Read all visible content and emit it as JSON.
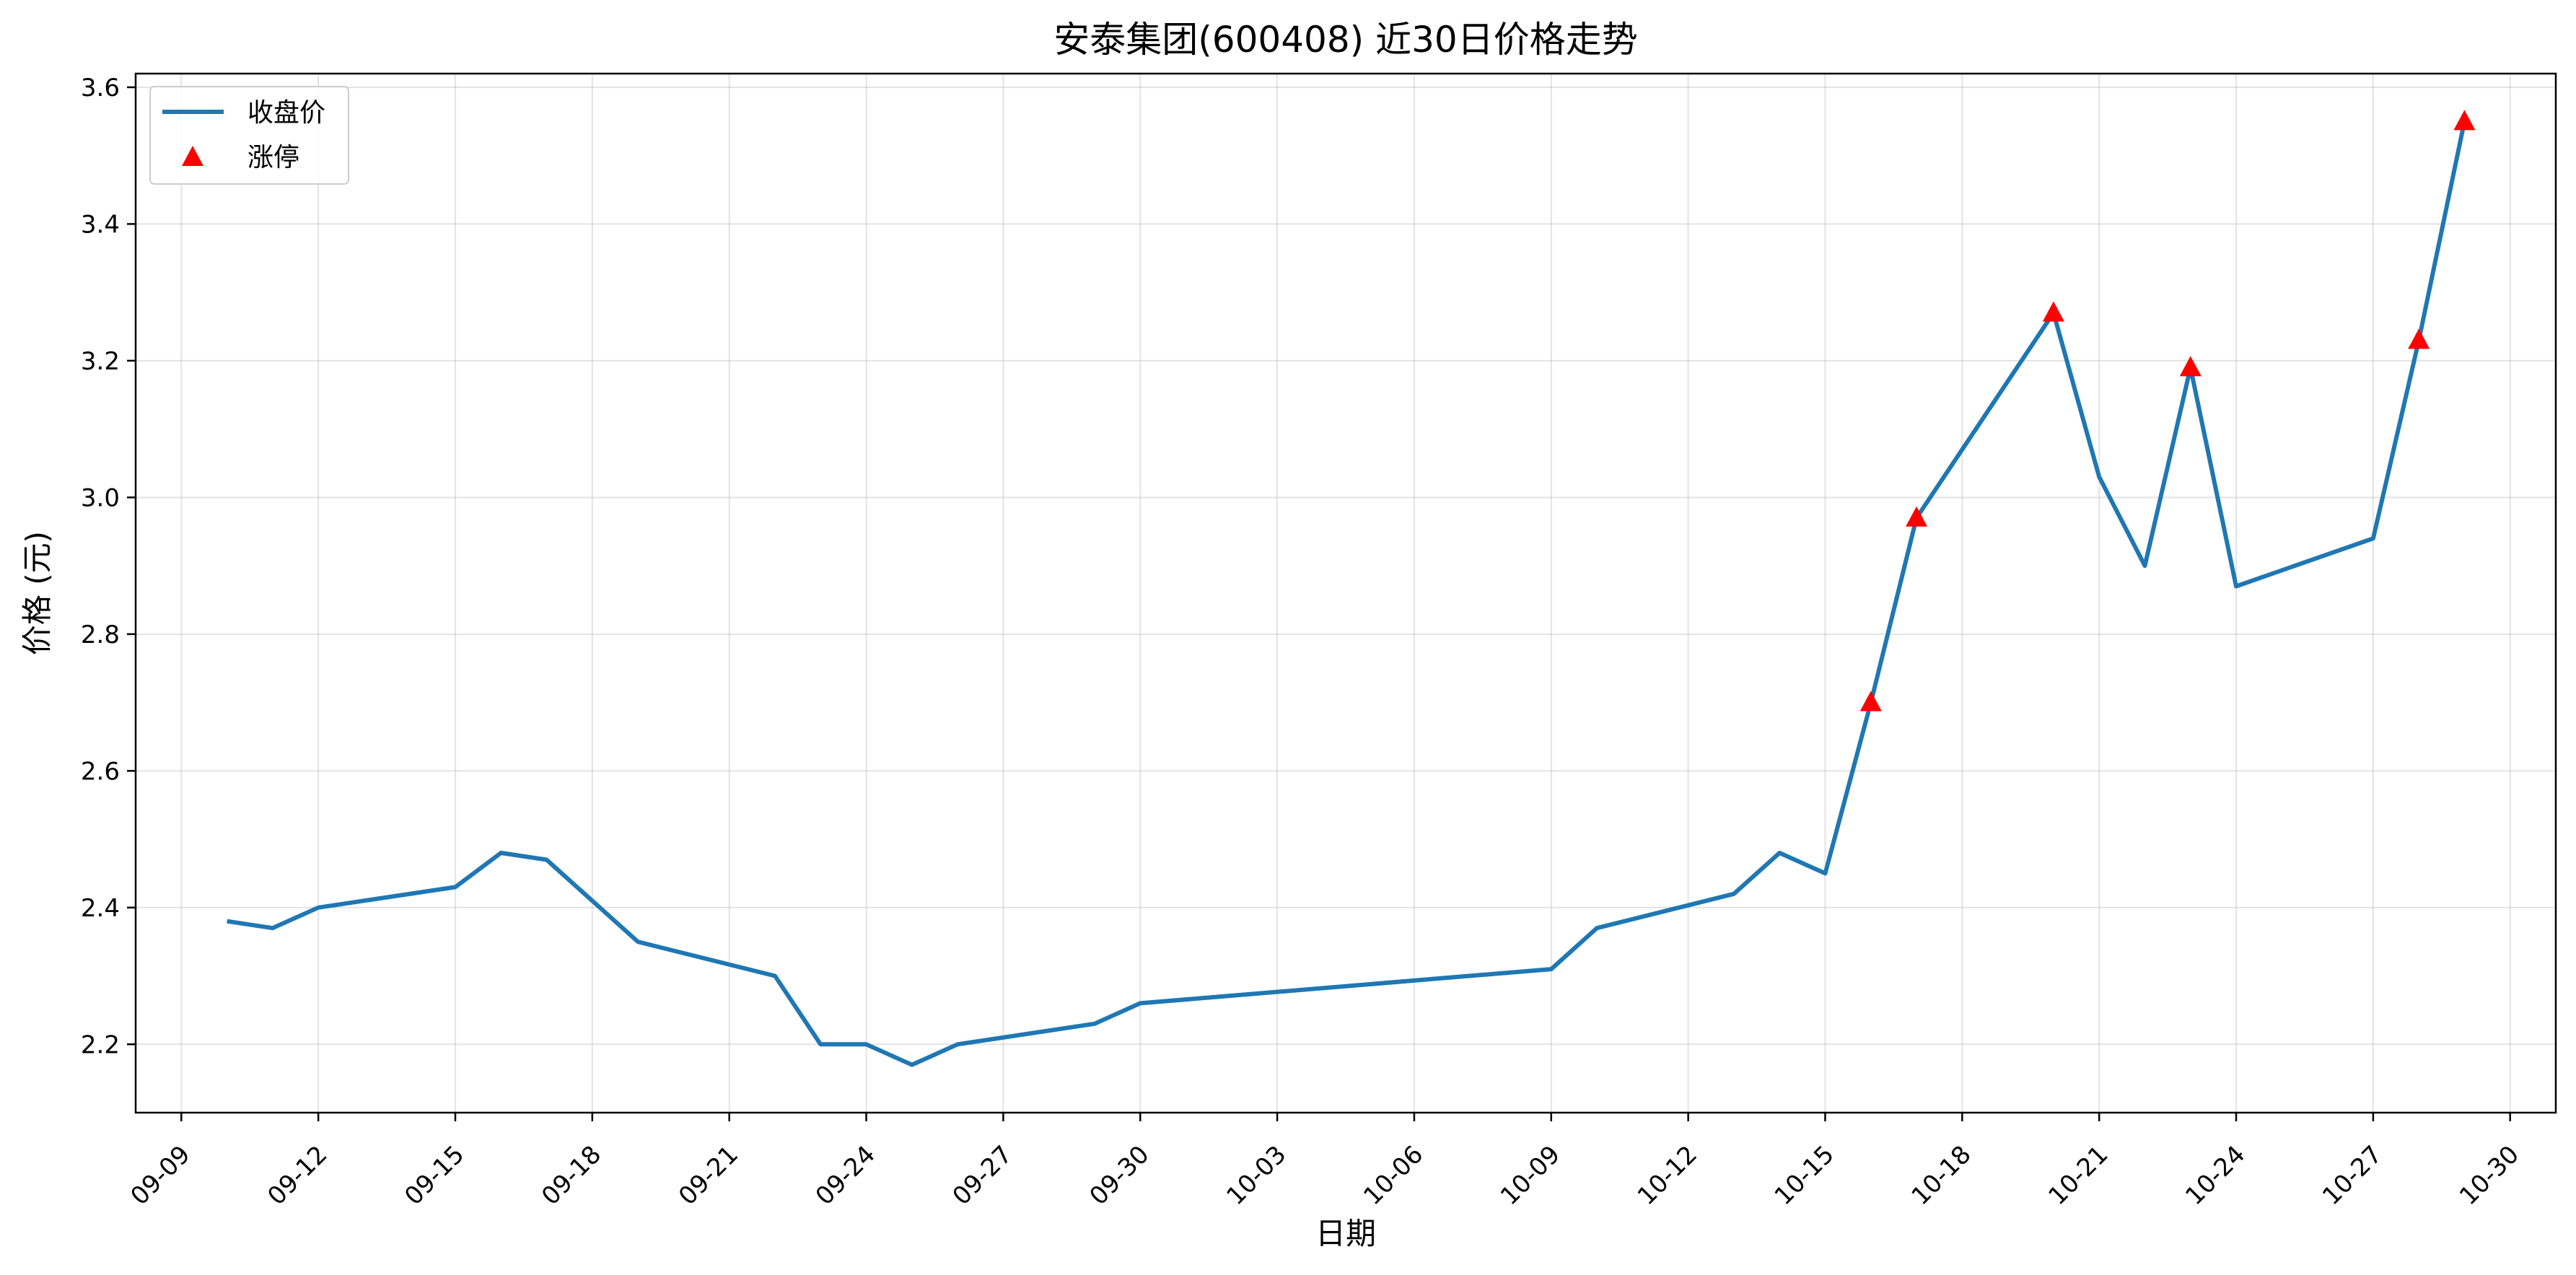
{
  "chart_data": {
    "type": "line",
    "title": "安泰集团(600408) 近30日价格走势",
    "xlabel": "日期",
    "ylabel": "价格 (元)",
    "x_ticks": [
      "09-09",
      "09-12",
      "09-15",
      "09-18",
      "09-21",
      "09-24",
      "09-27",
      "09-30",
      "10-03",
      "10-06",
      "10-09",
      "10-12",
      "10-15",
      "10-18",
      "10-21",
      "10-24",
      "10-27",
      "10-30"
    ],
    "y_ticks": [
      "2.2",
      "2.4",
      "2.6",
      "2.8",
      "3.0",
      "3.2",
      "3.4",
      "3.6"
    ],
    "xlim": [
      "09-08",
      "10-31"
    ],
    "ylim": [
      2.1,
      3.62
    ],
    "grid": true,
    "legend_position": "top-left",
    "series": [
      {
        "name": "收盘价",
        "type": "line",
        "color": "#1f77b4",
        "x": [
          "09-10",
          "09-11",
          "09-12",
          "09-15",
          "09-16",
          "09-17",
          "09-19",
          "09-22",
          "09-23",
          "09-24",
          "09-25",
          "09-26",
          "09-29",
          "09-30",
          "10-09",
          "10-10",
          "10-13",
          "10-14",
          "10-15",
          "10-16",
          "10-17",
          "10-20",
          "10-21",
          "10-22",
          "10-23",
          "10-24",
          "10-27",
          "10-28",
          "10-29"
        ],
        "y": [
          2.38,
          2.37,
          2.4,
          2.43,
          2.48,
          2.47,
          2.35,
          2.3,
          2.2,
          2.2,
          2.17,
          2.2,
          2.23,
          2.26,
          2.31,
          2.37,
          2.42,
          2.48,
          2.45,
          2.7,
          2.97,
          3.27,
          3.03,
          2.9,
          3.19,
          2.87,
          2.94,
          3.23,
          3.55
        ]
      },
      {
        "name": "涨停",
        "type": "scatter",
        "marker": "triangle-up",
        "color": "#ff0000",
        "x": [
          "10-16",
          "10-17",
          "10-20",
          "10-23",
          "10-28",
          "10-29"
        ],
        "y": [
          2.7,
          2.97,
          3.27,
          3.19,
          3.23,
          3.55
        ]
      }
    ]
  }
}
